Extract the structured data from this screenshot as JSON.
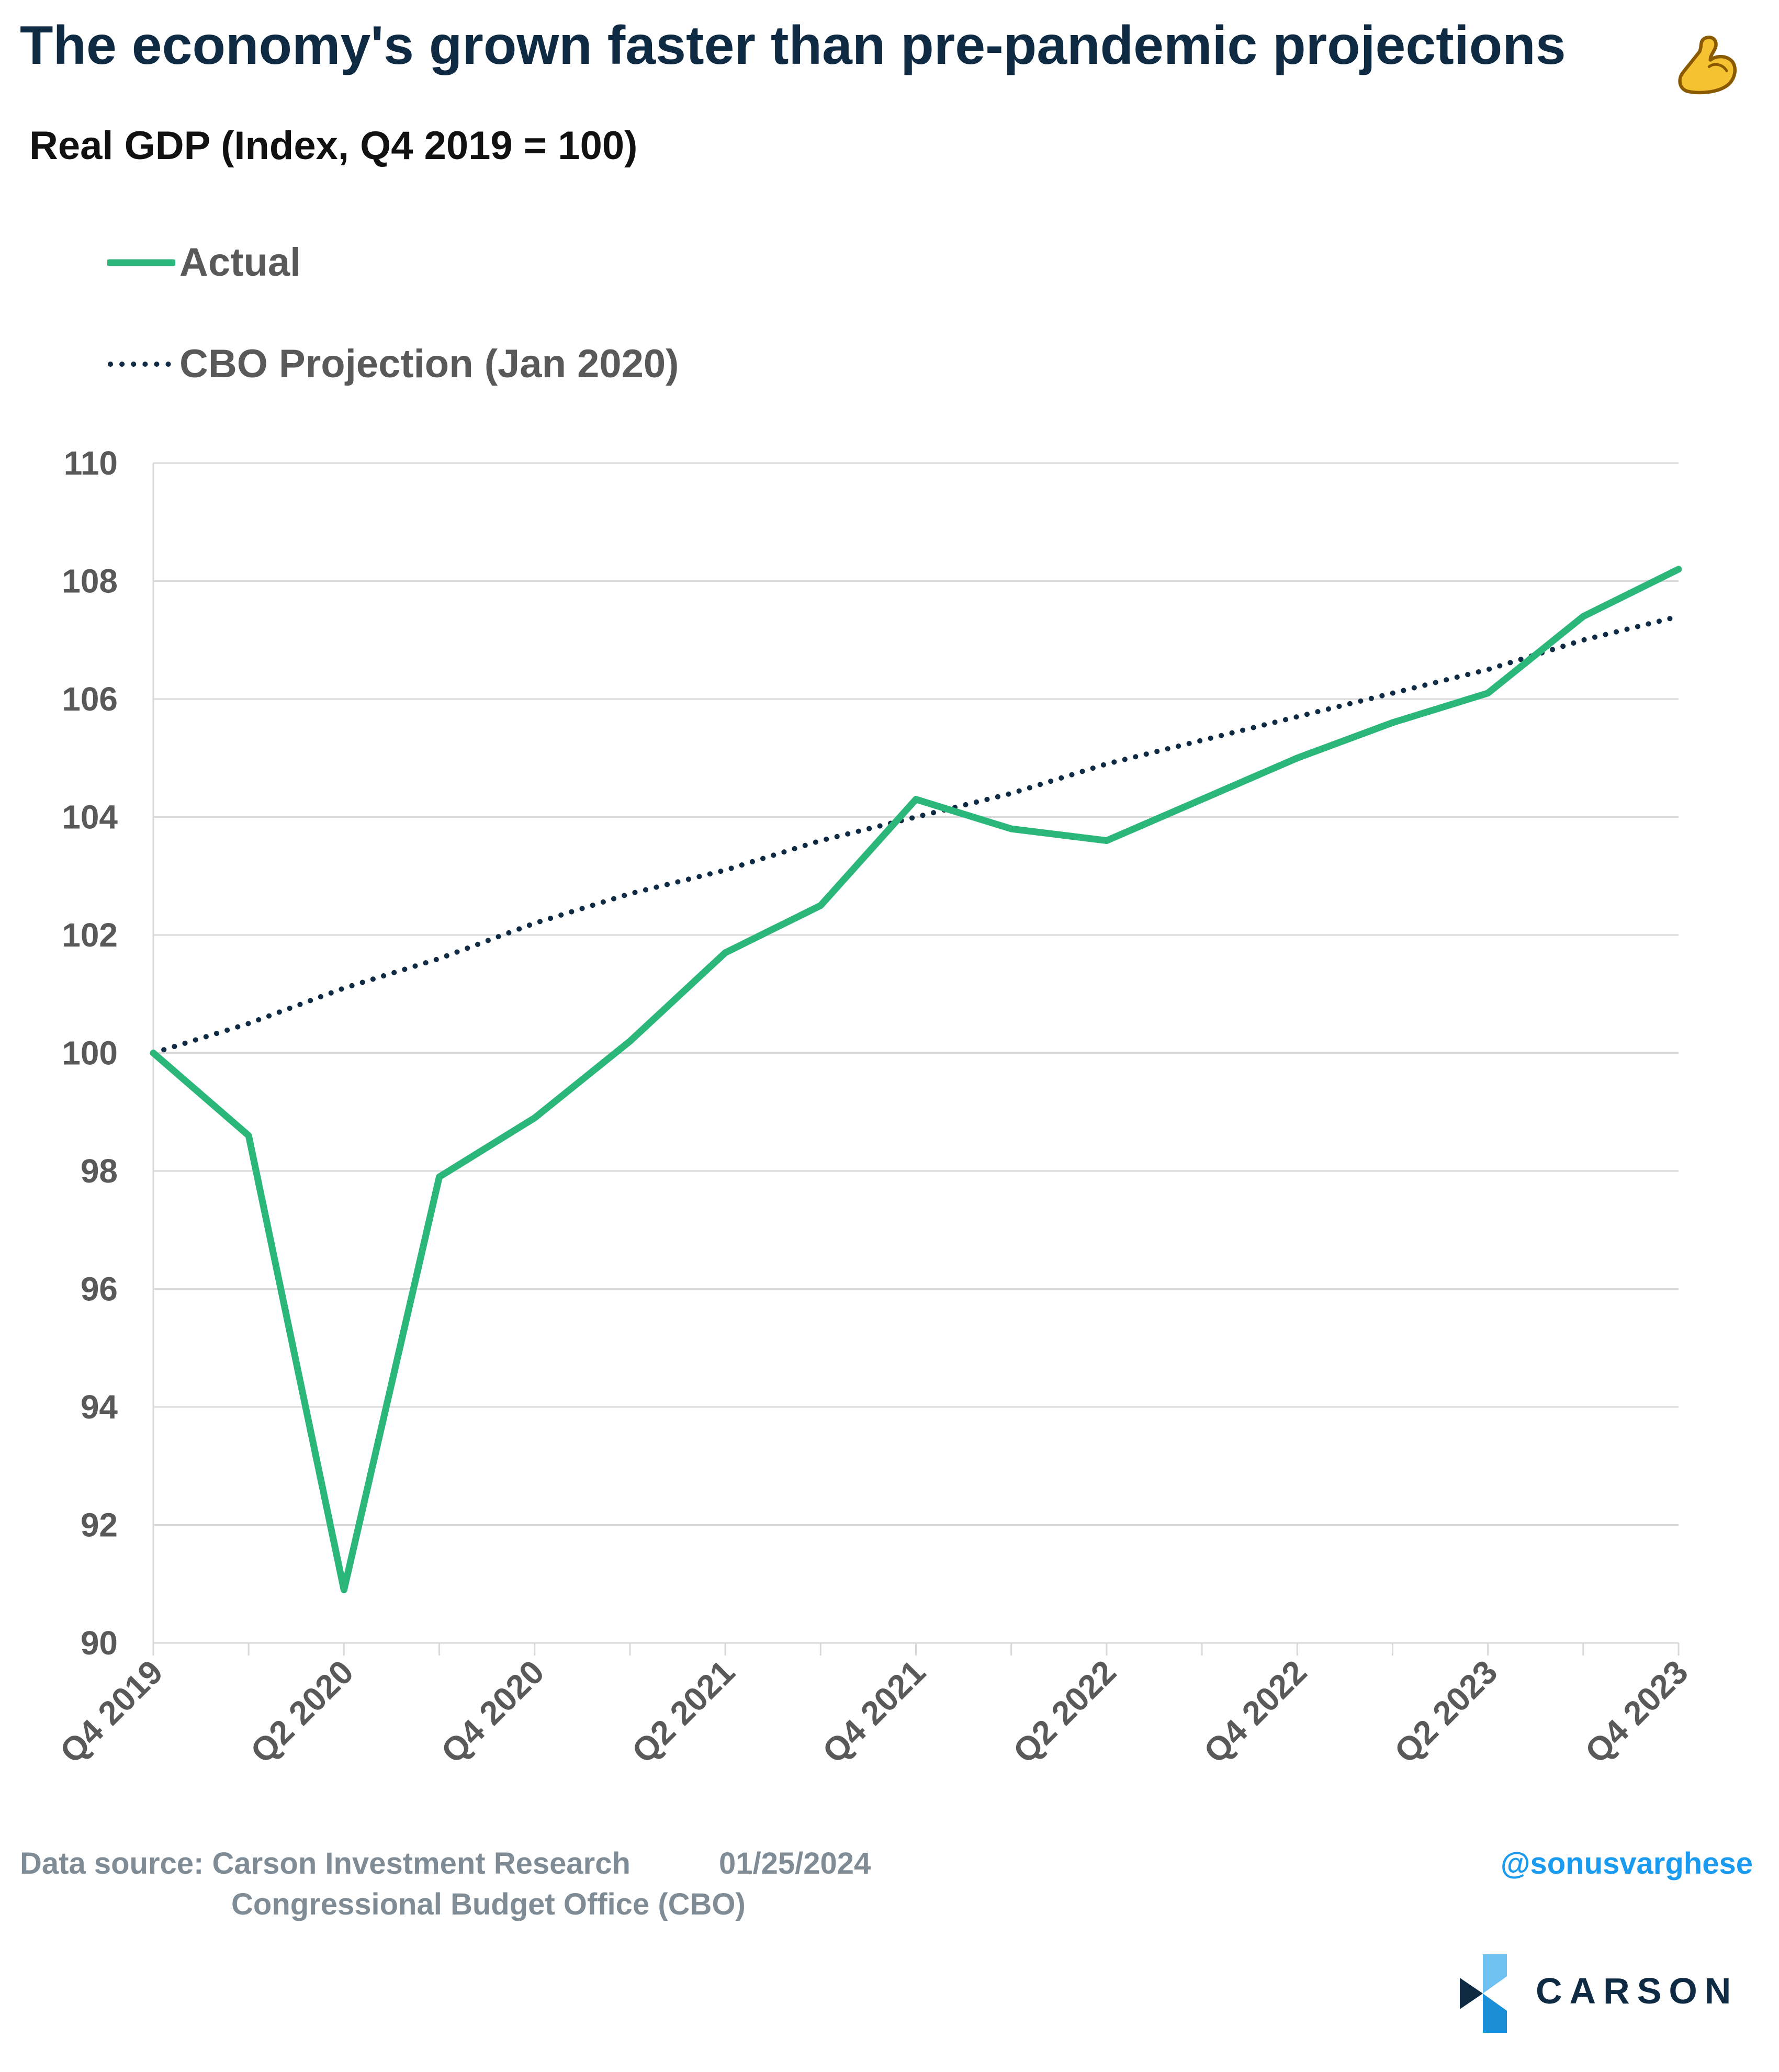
{
  "header": {
    "title": "The economy's grown faster than pre-pandemic projections",
    "title_icon": "flexed-biceps-icon",
    "subtitle": "Real GDP (Index, Q4 2019 = 100)"
  },
  "legend": {
    "actual_label": "Actual",
    "cbo_label": "CBO Projection (Jan 2020)"
  },
  "colors": {
    "actual": "#2bb77a",
    "cbo": "#0f2a43",
    "grid": "#d9d9d9",
    "axis_text": "#595959",
    "title": "#0f2a43",
    "handle": "#1a9bf0"
  },
  "chart_data": {
    "type": "line",
    "title": "The economy's grown faster than pre-pandemic projections",
    "subtitle": "Real GDP (Index, Q4 2019 = 100)",
    "x": [
      "Q4 2019",
      "Q1 2020",
      "Q2 2020",
      "Q3 2020",
      "Q4 2020",
      "Q1 2021",
      "Q2 2021",
      "Q3 2021",
      "Q4 2021",
      "Q1 2022",
      "Q2 2022",
      "Q3 2022",
      "Q4 2022",
      "Q1 2023",
      "Q2 2023",
      "Q3 2023",
      "Q4 2023"
    ],
    "x_tick_labels": [
      "Q4 2019",
      "Q2 2020",
      "Q4 2020",
      "Q2 2021",
      "Q4 2021",
      "Q2 2022",
      "Q4 2022",
      "Q2 2023",
      "Q4 2023"
    ],
    "y_ticks": [
      90,
      92,
      94,
      96,
      98,
      100,
      102,
      104,
      106,
      108,
      110
    ],
    "ylim": [
      90,
      110
    ],
    "grid": true,
    "legend_position": "top-left",
    "series": [
      {
        "name": "Actual",
        "style": "solid",
        "values": [
          100.0,
          98.6,
          90.9,
          97.9,
          98.9,
          100.2,
          101.7,
          102.5,
          104.3,
          103.8,
          103.6,
          104.3,
          105.0,
          105.6,
          106.1,
          107.4,
          108.2
        ]
      },
      {
        "name": "CBO Projection (Jan 2020)",
        "style": "dotted",
        "values": [
          100.0,
          100.5,
          101.1,
          101.6,
          102.2,
          102.7,
          103.1,
          103.6,
          104.0,
          104.4,
          104.9,
          105.3,
          105.7,
          106.1,
          106.5,
          107.0,
          107.4
        ]
      }
    ]
  },
  "footer": {
    "source_line1": "Data source: Carson Investment Research",
    "date": "01/25/2024",
    "source_line2": "Congressional Budget Office (CBO)",
    "handle": "@sonusvarghese",
    "brand": "CARSON"
  }
}
